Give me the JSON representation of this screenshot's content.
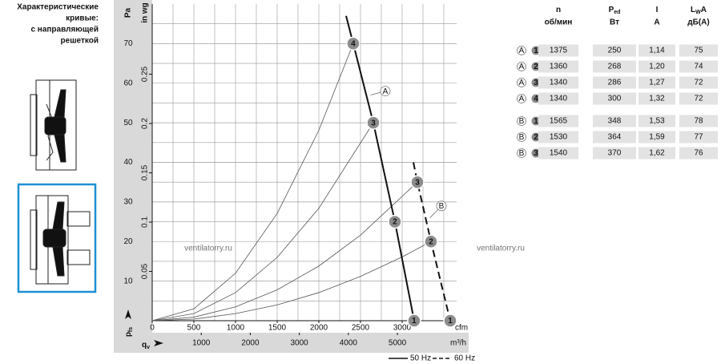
{
  "sidebar": {
    "title_lines": [
      "Характеристические",
      "кривые:",
      "с направляющей",
      "решеткой"
    ]
  },
  "watermark": "ventilatorry.ru",
  "chart_data": {
    "type": "line",
    "y_unit": "Pa",
    "y2_unit": "in wg",
    "x_unit": "cfm",
    "x2_unit": "m³/h",
    "y_symbol": "p",
    "y_symbol_sub": "fs",
    "x_symbol": "q",
    "x_symbol_sub": "v",
    "xlim": [
      0,
      3654
    ],
    "xticks": [
      0,
      500,
      1000,
      1500,
      2000,
      2500,
      3000
    ],
    "x2lim": [
      0,
      6208
    ],
    "x2ticks": [
      1000,
      2000,
      3000,
      4000,
      5000
    ],
    "ylim": [
      0,
      80
    ],
    "yticks": [
      10,
      20,
      30,
      40,
      50,
      60,
      70
    ],
    "y2lim": [
      0,
      0.3212
    ],
    "y2ticks": [
      0.05,
      0.1,
      0.15,
      0.2,
      0.25
    ],
    "grid": true,
    "minor_grid_divisions": 2,
    "series": [
      {
        "name": "50 Hz",
        "color": "#111111",
        "dashed": false,
        "x": [
          2327,
          2413,
          2654,
          2913,
          3144
        ],
        "values": [
          77,
          70,
          50,
          25,
          0
        ]
      },
      {
        "name": "60 Hz",
        "color": "#111111",
        "dashed": true,
        "x": [
          3135,
          3183,
          3346,
          3577
        ],
        "values": [
          40,
          35,
          20,
          0
        ]
      }
    ],
    "system_curves": {
      "color": "#555555",
      "curves": [
        {
          "x": [
            0,
            500,
            1000,
            1500,
            2000,
            2413
          ],
          "values": [
            0,
            3,
            12,
            27.1,
            48.1,
            70
          ]
        },
        {
          "x": [
            0,
            500,
            1000,
            1500,
            2000,
            2654
          ],
          "values": [
            0,
            1.8,
            7.1,
            16,
            28.4,
            50
          ]
        },
        {
          "x": [
            0,
            500,
            1000,
            1500,
            2000,
            2500,
            3183
          ],
          "values": [
            0,
            0.9,
            3.5,
            7.8,
            13.8,
            21.6,
            35
          ]
        },
        {
          "x": [
            0,
            500,
            1000,
            1500,
            2000,
            2500,
            3000,
            3346
          ],
          "values": [
            0,
            0.4,
            1.8,
            4,
            7.1,
            11.2,
            16.1,
            20
          ]
        }
      ]
    },
    "points": [
      {
        "label": "4",
        "x": 2413,
        "y": 70
      },
      {
        "label": "3",
        "x": 2654,
        "y": 50
      },
      {
        "label": "2",
        "x": 2913,
        "y": 25
      },
      {
        "label": "1",
        "x": 3144,
        "y": 0
      },
      {
        "label": "3",
        "x": 3183,
        "y": 35
      },
      {
        "label": "2",
        "x": 3346,
        "y": 20
      },
      {
        "label": "1",
        "x": 3577,
        "y": 0
      }
    ],
    "annotations": [
      {
        "text": "A",
        "x": 2798,
        "y": 58,
        "to_x": 2620,
        "to_y": 57
      },
      {
        "text": "B",
        "x": 3471,
        "y": 29,
        "to_x": 3335,
        "to_y": 26
      }
    ]
  },
  "table": {
    "columns": [
      {
        "symbol": "n",
        "sub": "",
        "after": "",
        "line2": "об/мин"
      },
      {
        "symbol": "P",
        "sub": "ed",
        "after": "",
        "line2": "Вт"
      },
      {
        "symbol": "I",
        "sub": "",
        "after": "",
        "line2": "A"
      },
      {
        "symbol": "L",
        "sub": "W",
        "after": "A",
        "line2": "дБ(A)"
      }
    ],
    "rows": [
      {
        "curve": "A",
        "point": "1",
        "cells": [
          "1375",
          "250",
          "1,14",
          "75"
        ]
      },
      {
        "curve": "A",
        "point": "2",
        "cells": [
          "1360",
          "268",
          "1,20",
          "74"
        ]
      },
      {
        "curve": "A",
        "point": "3",
        "cells": [
          "1340",
          "286",
          "1,27",
          "72"
        ]
      },
      {
        "curve": "A",
        "point": "4",
        "cells": [
          "1340",
          "300",
          "1,32",
          "72"
        ]
      },
      {
        "curve": "B",
        "point": "1",
        "cells": [
          "1565",
          "348",
          "1,53",
          "78"
        ]
      },
      {
        "curve": "B",
        "point": "2",
        "cells": [
          "1530",
          "364",
          "1,59",
          "77"
        ]
      },
      {
        "curve": "B",
        "point": "3",
        "cells": [
          "1540",
          "370",
          "1,62",
          "76"
        ]
      }
    ]
  }
}
